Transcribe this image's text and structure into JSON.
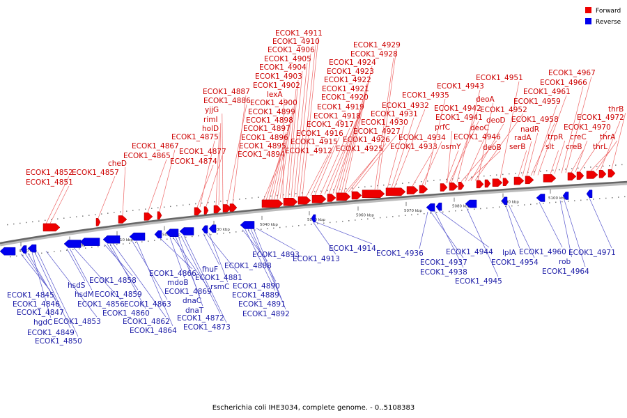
{
  "legend": [
    {
      "label": "Forward",
      "color": "#ee0000"
    },
    {
      "label": "Reverse",
      "color": "#0000ee"
    }
  ],
  "caption": "Escherichia coli IHE3034, complete genome. - 0..5108383",
  "axis_ticks": [
    "4990 kbp",
    "5000 kbp",
    "5010 kbp",
    "5020 kbp",
    "5030 kbp",
    "5040 kbp",
    "5050 kbp",
    "5060 kbp",
    "5070 kbp",
    "5080 kbp",
    "5090 kbp",
    "5100 kbp"
  ],
  "forward_genes": [
    "ECOK1_4851",
    "ECOK1_4852",
    "ECOK1_4857",
    "cheD",
    "ECOK1_4865",
    "ECOK1_4867",
    "ECOK1_4874",
    "ECOK1_4875",
    "ECOK1_4877",
    "holD",
    "rimI",
    "yjjG",
    "ECOK1_4886",
    "ECOK1_4887",
    "ECOK1_4894",
    "ECOK1_4895",
    "ECOK1_4896",
    "ECOK1_4897",
    "ECOK1_4898",
    "ECOK1_4899",
    "ECOK1_4900",
    "lexA",
    "ECOK1_4902",
    "ECOK1_4903",
    "ECOK1_4904",
    "ECOK1_4905",
    "ECOK1_4906",
    "ECOK1_4910",
    "ECOK1_4911",
    "ECOK1_4912",
    "ECOK1_4915",
    "ECOK1_4916",
    "ECOK1_4917",
    "ECOK1_4918",
    "ECOK1_4919",
    "ECOK1_4920",
    "ECOK1_4921",
    "ECOK1_4922",
    "ECOK1_4923",
    "ECOK1_4924",
    "ECOK1_4928",
    "ECOK1_4929",
    "ECOK1_4925",
    "ECOK1_4926",
    "ECOK1_4927",
    "ECOK1_4930",
    "ECOK1_4931",
    "ECOK1_4932",
    "ECOK1_4933",
    "ECOK1_4934",
    "ECOK1_4935",
    "osmY",
    "prfC",
    "ECOK1_4941",
    "ECOK1_4942",
    "ECOK1_4943",
    "ECOK1_4946",
    "deoC",
    "deoB",
    "deoD",
    "ECOK1_4952",
    "deoA",
    "ECOK1_4951",
    "serB",
    "radA",
    "nadR",
    "ECOK1_4958",
    "ECOK1_4959",
    "ECOK1_4961",
    "slt",
    "trpR",
    "ECOK1_4966",
    "ECOK1_4967",
    "creB",
    "creC",
    "ECOK1_4970",
    "thrL",
    "thrA",
    "ECOK1_4972",
    "thrB"
  ],
  "reverse_genes": [
    "ECOK1_4845",
    "ECOK1_4846",
    "ECOK1_4847",
    "hgdC",
    "ECOK1_4849",
    "ECOK1_4850",
    "ECOK1_4853",
    "hsdS",
    "hsdM",
    "ECOK1_4856",
    "ECOK1_4858",
    "ECOK1_4859",
    "ECOK1_4860",
    "ECOK1_4862",
    "ECOK1_4863",
    "ECOK1_4864",
    "ECOK1_4866",
    "mdoB",
    "ECOK1_4869",
    "dnaC",
    "dnaT",
    "ECOK1_4872",
    "ECOK1_4873",
    "fhuF",
    "ECOK1_4881",
    "rsmC",
    "ECOK1_4888",
    "ECOK1_4889",
    "ECOK1_4890",
    "ECOK1_4891",
    "ECOK1_4892",
    "ECOK1_4893",
    "ECOK1_4913",
    "ECOK1_4914",
    "ECOK1_4936",
    "ECOK1_4937",
    "ECOK1_4938",
    "ECOK1_4944",
    "ECOK1_4945",
    "lplA",
    "ECOK1_4954",
    "ECOK1_4960",
    "rob",
    "ECOK1_4964",
    "ECOK1_4971"
  ]
}
